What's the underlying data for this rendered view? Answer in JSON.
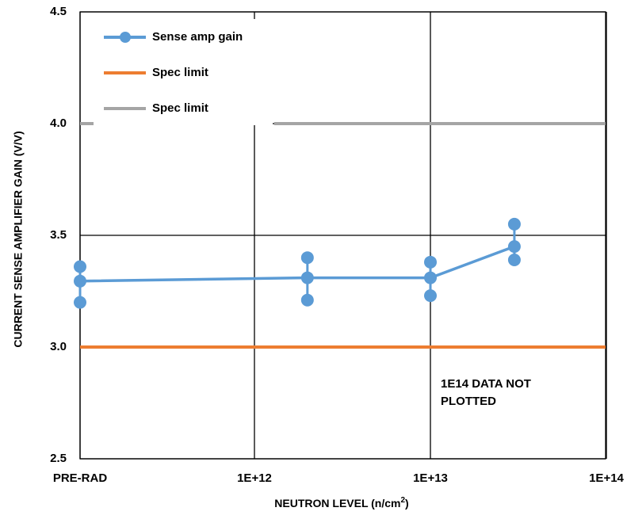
{
  "chart_data": {
    "type": "line",
    "xlabel_main": "NEUTRON LEVEL (n/cm",
    "xlabel_sup": "2",
    "xlabel_end": ")",
    "ylabel": "CURRENT SENSE AMPLIFIER GAIN (V/V)",
    "x_scale": "log",
    "x_ticks": [
      "PRE-RAD",
      "1E+12",
      "1E+13",
      "1E+14"
    ],
    "y_ticks": [
      "2.5",
      "3.0",
      "3.5",
      "4.0",
      "4.5"
    ],
    "ylim": [
      2.5,
      4.5
    ],
    "grid": true,
    "legend_position": "top-left",
    "series": [
      {
        "name": "Sense amp gain",
        "color": "#5b9bd5",
        "x": [
          "PRE-RAD",
          "2E+12",
          "1E+13",
          "3E+13"
        ],
        "y": [
          3.295,
          3.31,
          3.31,
          3.45
        ],
        "error_min": [
          3.2,
          3.21,
          3.23,
          3.39
        ],
        "error_max": [
          3.36,
          3.4,
          3.38,
          3.55
        ]
      },
      {
        "name": "Spec limit",
        "color": "#ed7d31",
        "y": 3.0
      },
      {
        "name": "Spec limit",
        "color": "#a5a5a5",
        "y": 4.0
      }
    ],
    "annotation": [
      "1E14 DATA NOT",
      "PLOTTED"
    ]
  }
}
